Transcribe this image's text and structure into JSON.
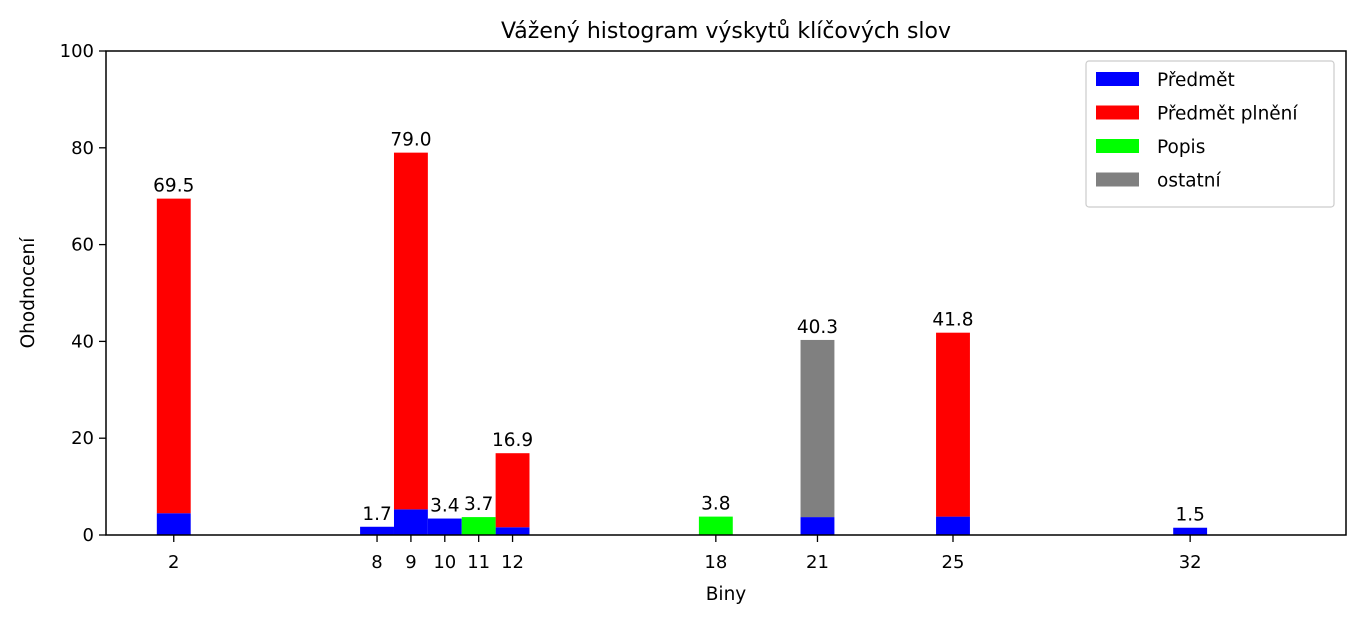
{
  "chart_data": {
    "type": "bar",
    "stacked": true,
    "title": "Vážený histogram výskytů klíčových slov",
    "xlabel": "Biny",
    "ylabel": "Ohodnocení",
    "ylim": [
      0,
      100
    ],
    "yticks": [
      0,
      20,
      40,
      60,
      80,
      100
    ],
    "xticks": [
      2,
      8,
      9,
      10,
      11,
      12,
      18,
      21,
      25,
      32
    ],
    "xlim": [
      0,
      36.6
    ],
    "bar_width": 1,
    "grid": false,
    "legend_position": "top-right",
    "series": [
      {
        "name": "Předmět",
        "color": "#0000ff",
        "points": [
          [
            2,
            4.5
          ],
          [
            8,
            1.7
          ],
          [
            9,
            5.3
          ],
          [
            10,
            3.4
          ],
          [
            12,
            1.6
          ],
          [
            21,
            3.7
          ],
          [
            25,
            3.8
          ],
          [
            32,
            1.5
          ]
        ]
      },
      {
        "name": "Předmět plnění",
        "color": "#ff0000",
        "points": [
          [
            2,
            65.0
          ],
          [
            9,
            73.7
          ],
          [
            12,
            15.3
          ],
          [
            25,
            38.0
          ]
        ]
      },
      {
        "name": "Popis",
        "color": "#00ff00",
        "points": [
          [
            11,
            3.7
          ],
          [
            18,
            3.8
          ]
        ]
      },
      {
        "name": "ostatní",
        "color": "#808080",
        "points": [
          [
            21,
            36.6
          ]
        ]
      }
    ],
    "totals": [
      {
        "x": 2,
        "label": "69.5"
      },
      {
        "x": 8,
        "label": "1.7"
      },
      {
        "x": 9,
        "label": "79.0"
      },
      {
        "x": 10,
        "label": "3.4"
      },
      {
        "x": 11,
        "label": "3.7"
      },
      {
        "x": 12,
        "label": "16.9"
      },
      {
        "x": 18,
        "label": "3.8"
      },
      {
        "x": 21,
        "label": "40.3"
      },
      {
        "x": 25,
        "label": "41.8"
      },
      {
        "x": 32,
        "label": "1.5"
      }
    ]
  }
}
